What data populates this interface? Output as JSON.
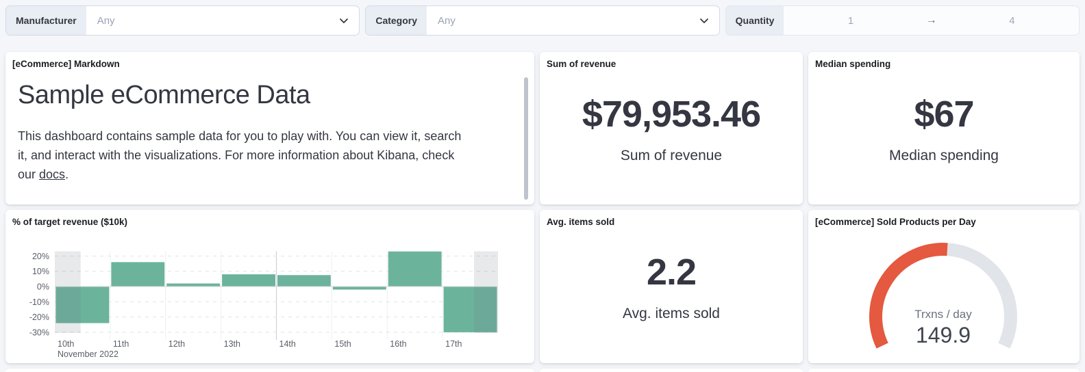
{
  "filters": {
    "manufacturer": {
      "label": "Manufacturer",
      "value": "Any"
    },
    "category": {
      "label": "Category",
      "value": "Any"
    },
    "quantity": {
      "label": "Quantity",
      "from": "1",
      "to": "4",
      "arrow": "→"
    }
  },
  "panels": {
    "markdown": {
      "title": "[eCommerce] Markdown",
      "heading": "Sample eCommerce Data",
      "body_before_link": "This dashboard contains sample data for you to play with. You can view it, search it, and interact with the visualizations. For more information about Kibana, check our ",
      "link_text": "docs",
      "body_after_link": "."
    },
    "sum_revenue": {
      "title": "Sum of revenue",
      "value": "$79,953.46",
      "label": "Sum of revenue"
    },
    "median_spending": {
      "title": "Median spending",
      "value": "$67",
      "label": "Median spending"
    },
    "avg_items": {
      "title": "Avg. items sold",
      "value": "2.2",
      "label": "Avg. items sold"
    }
  },
  "chart_data": [
    {
      "type": "bar",
      "title": "% of target revenue ($10k)",
      "categories": [
        "10th",
        "11th",
        "12th",
        "13th",
        "14th",
        "15th",
        "16th",
        "17th"
      ],
      "values": [
        -24,
        16,
        2,
        8,
        7.5,
        -2,
        23,
        -30
      ],
      "unit": "%",
      "x_axis_secondary_label": "November 2022",
      "y_ticks": [
        20,
        10,
        0,
        -10,
        -20,
        -30
      ],
      "ylim": [
        -30.5,
        23
      ],
      "grid": true,
      "bar_color": "#6cb39c",
      "partial_bucket_shading_color": "rgba(110,117,130,0.16)",
      "emphasized_x_gridline_index": 4
    },
    {
      "type": "gauge",
      "title": "[eCommerce] Sold Products per Day",
      "label": "Trxns / day",
      "value": "149.9",
      "fraction": 0.515,
      "arc_color": "#e4593f",
      "track_color": "#e1e4e9"
    }
  ]
}
